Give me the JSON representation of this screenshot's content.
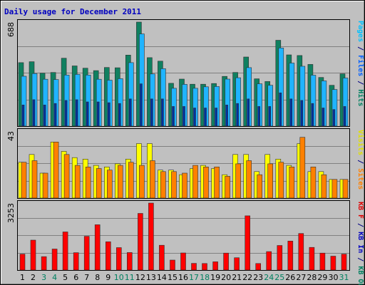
{
  "chart_data": {
    "type": "bar",
    "title": "Daily usage for December 2011",
    "categories": [
      "1",
      "2",
      "3",
      "4",
      "5",
      "6",
      "7",
      "8",
      "9",
      "10",
      "11",
      "12",
      "13",
      "14",
      "15",
      "16",
      "17",
      "18",
      "19",
      "20",
      "21",
      "22",
      "23",
      "24",
      "25",
      "26",
      "27",
      "28",
      "29",
      "30",
      "31"
    ],
    "weekend_days": [
      "3",
      "4",
      "10",
      "11",
      "17",
      "18",
      "24",
      "25",
      "31"
    ],
    "panels": [
      {
        "id": "top",
        "ymax_label": "688",
        "ymax": 688,
        "side_label_parts": [
          {
            "text": "Pages",
            "color": "#00c0ff"
          },
          {
            "text": " / ",
            "color": "#000080"
          },
          {
            "text": "Files",
            "color": "#0060ff"
          },
          {
            "text": " / ",
            "color": "#000080"
          },
          {
            "text": "Hits",
            "color": "#008060"
          }
        ],
        "series": [
          {
            "name": "Hits",
            "color": "#108060",
            "values": [
              420,
              426,
              350,
              355,
              449,
              398,
              383,
              367,
              388,
              386,
              470,
              688,
              453,
              430,
              283,
              311,
              277,
              277,
              282,
              329,
              355,
              457,
              313,
              295,
              568,
              471,
              467,
              408,
              322,
              270,
              346
            ]
          },
          {
            "name": "Files",
            "color": "#20b4ff",
            "values": [
              330,
              348,
              310,
              308,
              338,
              342,
              338,
              310,
              304,
              314,
              420,
              610,
              345,
              380,
              250,
              276,
              250,
              260,
              262,
              311,
              320,
              387,
              280,
              270,
              517,
              417,
              396,
              337,
              299,
              242,
              318
            ]
          },
          {
            "name": "Pages",
            "color": "#0030a0",
            "values": [
              140,
              175,
              140,
              150,
              170,
              175,
              160,
              160,
              155,
              150,
              180,
              280,
              180,
              180,
              130,
              130,
              120,
              120,
              120,
              140,
              150,
              180,
              130,
              130,
              220,
              180,
              170,
              150,
              120,
              110,
              130
            ]
          }
        ]
      },
      {
        "id": "middle",
        "ymax_label": "43",
        "ymax": 43,
        "side_label_parts": [
          {
            "text": "Visits",
            "color": "#e0e000"
          },
          {
            "text": " / ",
            "color": "#000080"
          },
          {
            "text": "Sites",
            "color": "#ff8000"
          }
        ],
        "series": [
          {
            "name": "Visits",
            "color": "#ffff00",
            "values": [
              23,
              28,
              16,
              36,
              30,
              26,
              25,
              21,
              20,
              22,
              25,
              35,
              35,
              18,
              18,
              15,
              19,
              21,
              19,
              15,
              28,
              28,
              17,
              28,
              25,
              21,
              35,
              17,
              17,
              12,
              12
            ]
          },
          {
            "name": "Sites",
            "color": "#ff8000",
            "values": [
              23,
              24,
              16,
              36,
              28,
              21,
              20,
              19,
              18,
              21,
              23,
              21,
              24,
              17,
              17,
              16,
              21,
              20,
              20,
              14,
              22,
              24,
              15,
              22,
              23,
              20,
              39,
              20,
              15,
              12,
              12
            ]
          }
        ]
      },
      {
        "id": "bottom",
        "ymax_label": "3253",
        "ymax": 3253,
        "side_label_parts": [
          {
            "text": "KB F",
            "color": "#e00000"
          },
          {
            "text": " / ",
            "color": "#000080"
          },
          {
            "text": "KB In",
            "color": "#0000c0"
          },
          {
            "text": " / ",
            "color": "#000080"
          },
          {
            "text": "KB Out",
            "color": "#008060"
          }
        ],
        "series": [
          {
            "name": "KB F",
            "color": "#ff0000",
            "values": [
              775,
              1455,
              650,
              1020,
              1850,
              845,
              1640,
              2200,
              1375,
              1090,
              850,
              2750,
              3253,
              1205,
              485,
              830,
              325,
              320,
              400,
              825,
              600,
              2635,
              320,
              895,
              1195,
              1410,
              1775,
              1100,
              825,
              675,
              775
            ]
          }
        ]
      }
    ]
  }
}
